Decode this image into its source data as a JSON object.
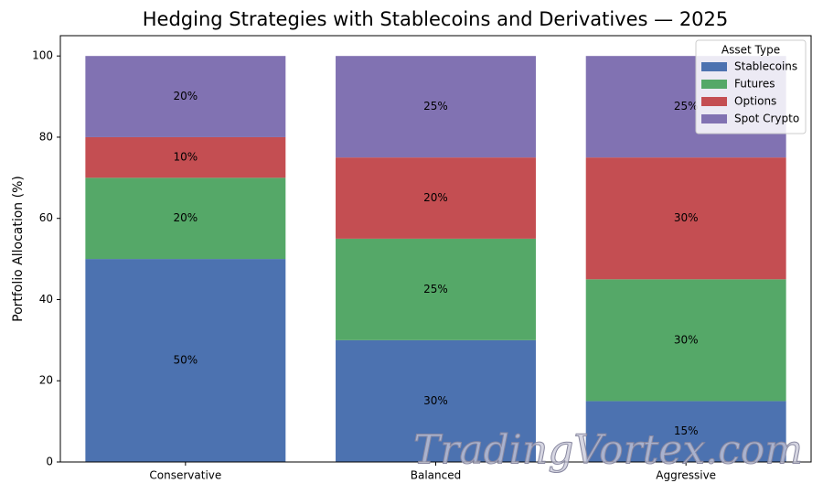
{
  "chart_data": {
    "type": "stacked_bar",
    "title": "Hedging Strategies with Stablecoins and Derivatives — 2025",
    "y_label": "Portfolio Allocation (%)",
    "categories": [
      "Conservative",
      "Balanced",
      "Aggressive"
    ],
    "series": [
      {
        "name": "Stablecoins",
        "color": "#4c72b0",
        "values": [
          50,
          30,
          15
        ],
        "value_labels": [
          "50%",
          "30%",
          "15%"
        ]
      },
      {
        "name": "Futures",
        "color": "#55a868",
        "values": [
          20,
          25,
          30
        ],
        "value_labels": [
          "20%",
          "25%",
          "30%"
        ]
      },
      {
        "name": "Options",
        "color": "#c44e52",
        "values": [
          10,
          20,
          30
        ],
        "value_labels": [
          "10%",
          "20%",
          "30%"
        ]
      },
      {
        "name": "Spot Crypto",
        "color": "#8172b2",
        "values": [
          20,
          25,
          25
        ],
        "value_labels": [
          "20%",
          "25%",
          "25%"
        ]
      }
    ],
    "legend_title": "Asset Type",
    "legend_position": "upper right",
    "ylim": [
      0,
      105
    ],
    "yticks": [
      0,
      20,
      40,
      60,
      80,
      100
    ],
    "watermark": "TradingVortex.com"
  }
}
